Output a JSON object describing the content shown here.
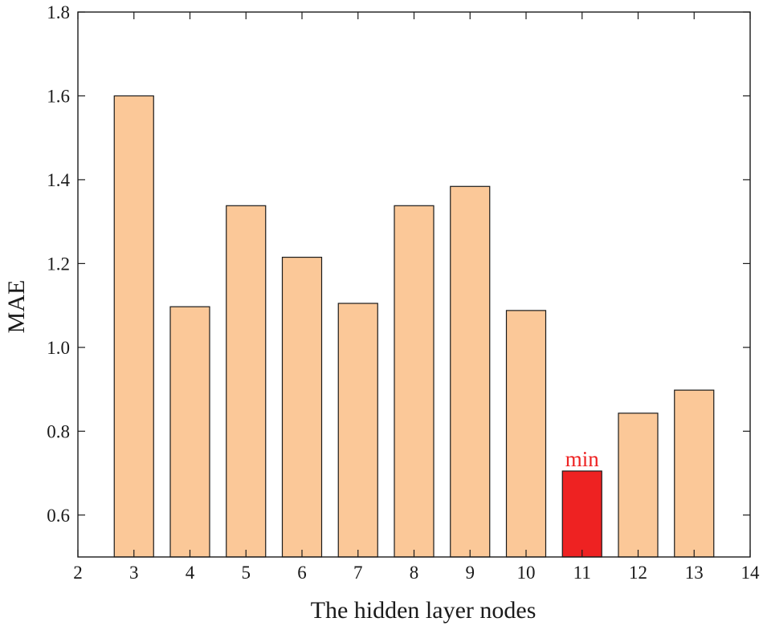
{
  "chart_data": {
    "type": "bar",
    "categories": [
      3,
      4,
      5,
      6,
      7,
      8,
      9,
      10,
      11,
      12,
      13
    ],
    "values": [
      1.6,
      1.097,
      1.338,
      1.215,
      1.105,
      1.338,
      1.384,
      1.088,
      0.705,
      0.843,
      0.898
    ],
    "title": "",
    "xlabel": "The hidden layer nodes",
    "ylabel": "MAE",
    "xlim": [
      2,
      14
    ],
    "ylim": [
      0.5,
      1.8
    ],
    "xticks": [
      2,
      3,
      4,
      5,
      6,
      7,
      8,
      9,
      10,
      11,
      12,
      13,
      14
    ],
    "yticks": [
      0.6,
      0.8,
      1.0,
      1.2,
      1.4,
      1.6,
      1.8
    ],
    "ytick_labels": [
      "0.6",
      "0.8",
      "1.0",
      "1.2",
      "1.4",
      "1.6",
      "1.8"
    ],
    "grid": false,
    "bar_color": "#FBC898",
    "highlight": {
      "category": 11,
      "color": "#EE2222",
      "label": "min"
    }
  }
}
